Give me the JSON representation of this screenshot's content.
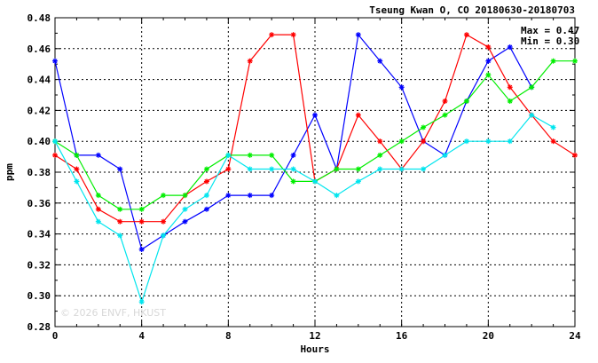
{
  "chart_data": {
    "type": "line",
    "title": "Tseung Kwan O, CO 20180630-20180703",
    "xlabel": "Hours",
    "ylabel": "ppm",
    "xlim": [
      0,
      24
    ],
    "ylim": [
      0.28,
      0.48
    ],
    "xticks": [
      0,
      4,
      8,
      12,
      16,
      20,
      24
    ],
    "xtick_labels": [
      "0",
      "4",
      "8",
      "12",
      "16",
      "20",
      "24"
    ],
    "yticks": [
      0.28,
      0.3,
      0.32,
      0.34,
      0.36,
      0.38,
      0.4,
      0.42,
      0.44,
      0.46,
      0.48
    ],
    "ytick_labels": [
      "0.28",
      "0.30",
      "0.32",
      "0.34",
      "0.36",
      "0.38",
      "0.40",
      "0.42",
      "0.44",
      "0.46",
      "0.48"
    ],
    "grid": true,
    "annotations": {
      "max_label": "Max = 0.47",
      "min_label": "Min = 0.30"
    },
    "watermark": "© 2026  ENVF, HKUST",
    "series": [
      {
        "color": "#0000ff",
        "x": [
          0,
          1,
          2,
          3,
          4,
          5,
          6,
          7,
          8,
          9,
          10,
          11,
          12,
          13,
          14,
          15,
          16,
          17,
          18,
          19,
          20,
          21,
          22
        ],
        "values": [
          0.452,
          0.391,
          0.391,
          0.382,
          0.33,
          0.339,
          0.348,
          0.356,
          0.365,
          0.365,
          0.365,
          0.391,
          0.417,
          0.382,
          0.469,
          0.452,
          0.435,
          0.4,
          0.391,
          0.426,
          0.452,
          0.461,
          0.435
        ]
      },
      {
        "color": "#ff0000",
        "x": [
          0,
          1,
          2,
          3,
          4,
          5,
          6,
          7,
          8,
          9,
          10,
          11,
          12,
          13,
          14,
          15,
          16,
          17,
          18,
          19,
          20,
          21,
          22,
          23,
          24
        ],
        "values": [
          0.391,
          0.382,
          0.356,
          0.348,
          0.348,
          0.348,
          0.365,
          0.374,
          0.382,
          0.452,
          0.469,
          0.469,
          0.374,
          0.382,
          0.417,
          0.4,
          0.382,
          0.4,
          0.426,
          0.469,
          0.461,
          0.435,
          0.417,
          0.4,
          0.391
        ]
      },
      {
        "color": "#00ee00",
        "x": [
          0,
          1,
          2,
          3,
          4,
          5,
          6,
          7,
          8,
          9,
          10,
          11,
          12,
          13,
          14,
          15,
          16,
          17,
          18,
          19,
          20,
          21,
          22,
          23,
          24
        ],
        "values": [
          0.4,
          0.391,
          0.365,
          0.356,
          0.356,
          0.365,
          0.365,
          0.382,
          0.391,
          0.391,
          0.391,
          0.374,
          0.374,
          0.382,
          0.382,
          0.391,
          0.4,
          0.409,
          0.417,
          0.426,
          0.443,
          0.426,
          0.435,
          0.452,
          0.452
        ]
      },
      {
        "color": "#00e5ee",
        "x": [
          0,
          1,
          2,
          3,
          4,
          5,
          6,
          7,
          8,
          9,
          10,
          11,
          12,
          13,
          14,
          15,
          16,
          17,
          18,
          19,
          20,
          21,
          22,
          23
        ],
        "values": [
          0.4,
          0.374,
          0.348,
          0.339,
          0.296,
          0.339,
          0.356,
          0.365,
          0.391,
          0.382,
          0.382,
          0.382,
          0.374,
          0.365,
          0.374,
          0.382,
          0.382,
          0.382,
          0.391,
          0.4,
          0.4,
          0.4,
          0.417,
          0.409
        ]
      }
    ]
  }
}
